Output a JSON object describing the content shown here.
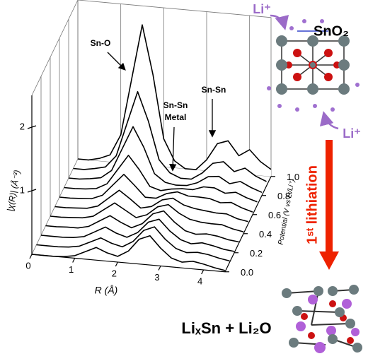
{
  "chart_data": {
    "type": "waterfall3d",
    "x_label": "R (Å)",
    "y_label": "Potential (V vs Li/Li⁺)",
    "z_label": "|χ(R)| (Å⁻³)",
    "xlim": [
      0,
      4.5
    ],
    "xticks": [
      0,
      1,
      2,
      3,
      4
    ],
    "ylim": [
      0,
      1
    ],
    "yticks": [
      {
        "value": 0,
        "label": "0.0"
      },
      {
        "value": 0.2,
        "label": "0.2"
      },
      {
        "value": 0.4,
        "label": "0.4"
      },
      {
        "value": 0.6,
        "label": "0.6"
      },
      {
        "value": 0.8,
        "label": "0.8"
      },
      {
        "value": 1,
        "label": "1.0"
      }
    ],
    "zlim": [
      0,
      2.5
    ],
    "zticks": [
      1,
      2
    ],
    "x": [
      0,
      0.25,
      0.5,
      0.75,
      1,
      1.25,
      1.5,
      1.75,
      2,
      2.25,
      2.5,
      2.75,
      3,
      3.25,
      3.5,
      3.75,
      4,
      4.25,
      4.5
    ],
    "color": "#000000",
    "series": [
      {
        "y": 0,
        "values": [
          0,
          0,
          0,
          0.01,
          0.04,
          0.12,
          0.2,
          0.13,
          0.09,
          0.19,
          0.39,
          0.46,
          0.28,
          0.14,
          0.09,
          0.12,
          0.09,
          0.05,
          0.02
        ]
      },
      {
        "y": 0.1,
        "values": [
          0,
          0,
          0,
          0.01,
          0.04,
          0.12,
          0.2,
          0.13,
          0.09,
          0.19,
          0.38,
          0.45,
          0.27,
          0.14,
          0.09,
          0.11,
          0.09,
          0.05,
          0.02
        ]
      },
      {
        "y": 0.2,
        "values": [
          0,
          0,
          0,
          0.01,
          0.04,
          0.13,
          0.22,
          0.14,
          0.09,
          0.18,
          0.36,
          0.42,
          0.25,
          0.13,
          0.08,
          0.11,
          0.08,
          0.04,
          0.02
        ]
      },
      {
        "y": 0.3,
        "values": [
          0,
          0,
          0.01,
          0.01,
          0.05,
          0.15,
          0.25,
          0.16,
          0.09,
          0.17,
          0.34,
          0.4,
          0.24,
          0.12,
          0.08,
          0.1,
          0.08,
          0.04,
          0.02
        ]
      },
      {
        "y": 0.4,
        "values": [
          0,
          0,
          0.01,
          0.02,
          0.06,
          0.18,
          0.3,
          0.2,
          0.1,
          0.16,
          0.3,
          0.35,
          0.23,
          0.15,
          0.12,
          0.11,
          0.11,
          0.06,
          0.03
        ]
      },
      {
        "y": 0.5,
        "values": [
          0,
          0,
          0.01,
          0.02,
          0.07,
          0.21,
          0.35,
          0.23,
          0.1,
          0.14,
          0.26,
          0.3,
          0.21,
          0.17,
          0.15,
          0.13,
          0.13,
          0.07,
          0.04
        ]
      },
      {
        "y": 0.6,
        "values": [
          0,
          0,
          0.01,
          0.02,
          0.09,
          0.27,
          0.45,
          0.29,
          0.12,
          0.12,
          0.21,
          0.25,
          0.2,
          0.2,
          0.19,
          0.14,
          0.16,
          0.09,
          0.04
        ]
      },
      {
        "y": 0.7,
        "values": [
          0,
          0,
          0.01,
          0.03,
          0.12,
          0.36,
          0.6,
          0.39,
          0.14,
          0.09,
          0.13,
          0.15,
          0.15,
          0.21,
          0.21,
          0.14,
          0.17,
          0.1,
          0.05
        ]
      },
      {
        "y": 0.8,
        "values": [
          0,
          0,
          0.02,
          0.05,
          0.18,
          0.54,
          0.9,
          0.59,
          0.19,
          0.07,
          0.04,
          0.05,
          0.11,
          0.22,
          0.24,
          0.14,
          0.19,
          0.11,
          0.05
        ]
      },
      {
        "y": 0.9,
        "values": [
          0,
          0,
          0.03,
          0.07,
          0.26,
          0.78,
          1.3,
          0.85,
          0.26,
          0.07,
          0,
          0,
          0.11,
          0.28,
          0.32,
          0.18,
          0.25,
          0.14,
          0.07
        ]
      },
      {
        "y": 1,
        "values": [
          0,
          0,
          0.04,
          0.11,
          0.44,
          1.32,
          2.2,
          1.43,
          0.44,
          0.11,
          0,
          0,
          0.17,
          0.44,
          0.5,
          0.28,
          0.39,
          0.22,
          0.11
        ]
      }
    ],
    "annotations": [
      {
        "lines": [
          "Sn-O"
        ]
      },
      {
        "lines": [
          "Sn-Sn",
          "Metal"
        ]
      },
      {
        "lines": [
          "Sn-Sn"
        ]
      }
    ]
  },
  "scheme": {
    "initial": "SnO₂",
    "ion_top": "Li⁺",
    "ion_bottom": "Li⁺",
    "process": "1ˢᵗ lithiation",
    "product": "LiₓSn + Li₂O"
  }
}
